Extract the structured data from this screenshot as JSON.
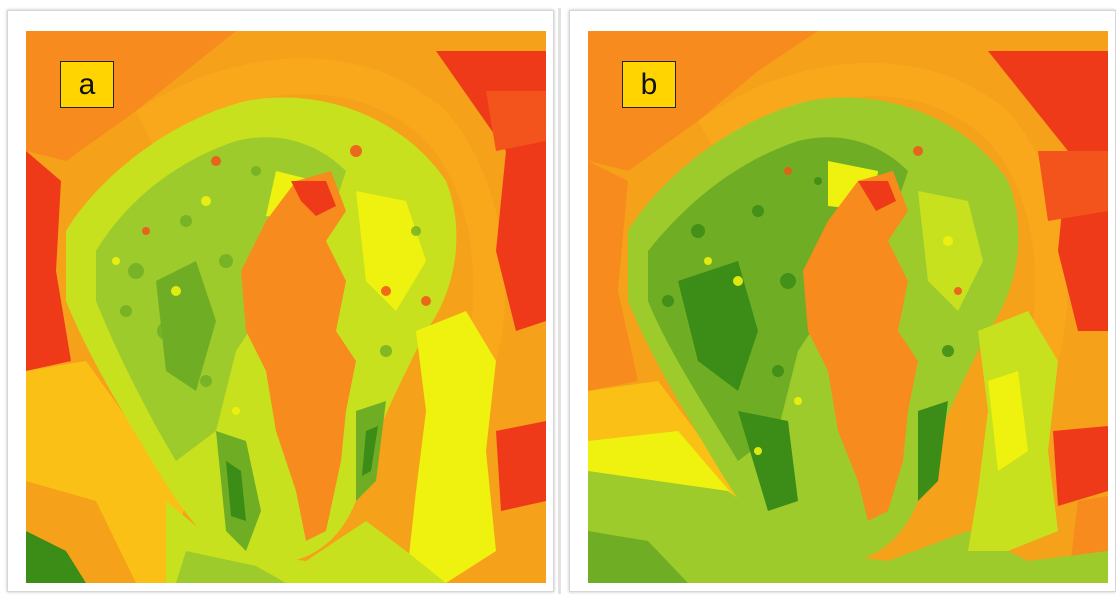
{
  "panels": [
    {
      "label": "a"
    },
    {
      "label": "b"
    }
  ],
  "colors": {
    "red": "#ef3a1a",
    "red_orange": "#f2541b",
    "orange": "#f5a11a",
    "orange_mid": "#f88b1e",
    "yellow_orange": "#fbc016",
    "yellow": "#eef20e",
    "yellow_green": "#c8e11e",
    "light_green": "#9ecb2c",
    "green": "#6fae24",
    "dark_green": "#3c8c18"
  }
}
